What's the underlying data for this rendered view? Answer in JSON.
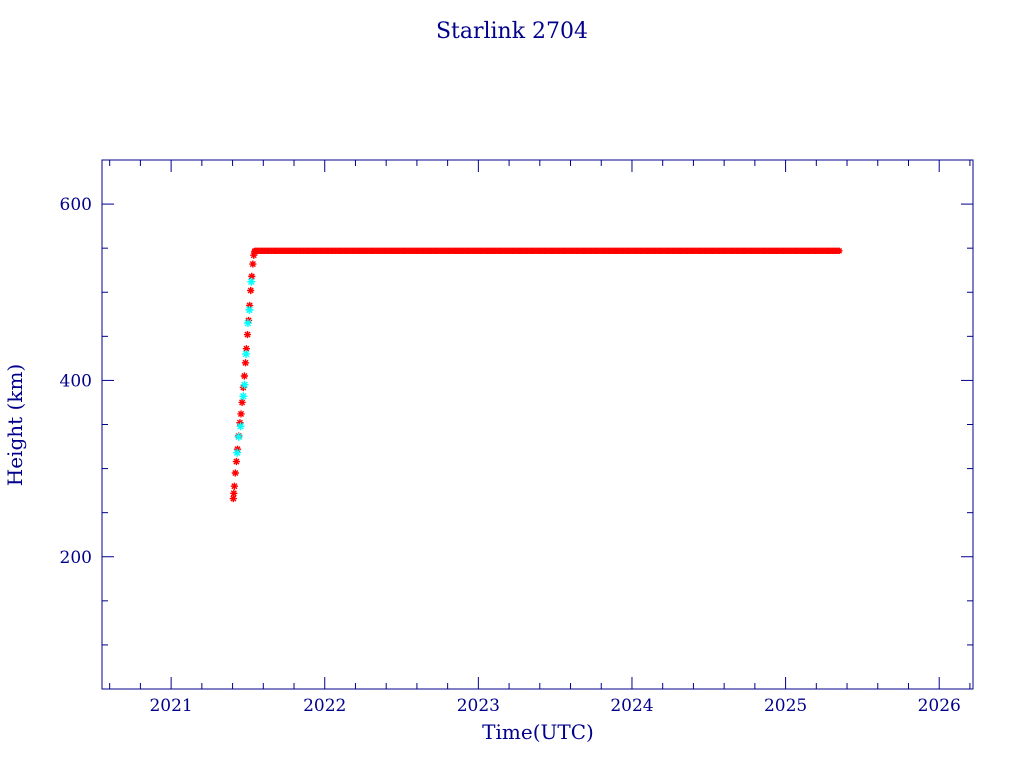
{
  "chart_data": {
    "type": "scatter",
    "title": "Starlink 2704",
    "xlabel": "Time(UTC)",
    "ylabel": "Height (km)",
    "xlim": [
      2020.55,
      2026.22
    ],
    "ylim": [
      50,
      650
    ],
    "x_ticks": [
      2021,
      2022,
      2023,
      2024,
      2025,
      2026
    ],
    "y_ticks": [
      200,
      400,
      600
    ],
    "grid": false,
    "colors": {
      "axis": "#00008b",
      "apogee": "#ff0000",
      "perigee": "#00ffff",
      "marker_edge": "#8b0000"
    },
    "series": [
      {
        "color": "#ff0000",
        "marker": "asterisk",
        "raising": [
          [
            2021.405,
            266
          ],
          [
            2021.408,
            272
          ],
          [
            2021.412,
            280
          ],
          [
            2021.418,
            295
          ],
          [
            2021.425,
            308
          ],
          [
            2021.432,
            322
          ],
          [
            2021.44,
            337
          ],
          [
            2021.448,
            352
          ],
          [
            2021.455,
            362
          ],
          [
            2021.462,
            375
          ],
          [
            2021.47,
            392
          ],
          [
            2021.477,
            405
          ],
          [
            2021.484,
            420
          ],
          [
            2021.49,
            436
          ],
          [
            2021.497,
            452
          ],
          [
            2021.504,
            468
          ],
          [
            2021.511,
            485
          ],
          [
            2021.518,
            502
          ],
          [
            2021.525,
            518
          ],
          [
            2021.532,
            532
          ],
          [
            2021.538,
            542
          ],
          [
            2021.545,
            546
          ]
        ],
        "plateau": {
          "start": 2021.545,
          "end": 2025.35,
          "value": 547
        }
      },
      {
        "color": "#00ffff",
        "marker": "asterisk",
        "raising": [
          [
            2021.43,
            318
          ],
          [
            2021.44,
            336
          ],
          [
            2021.452,
            348
          ],
          [
            2021.47,
            382
          ],
          [
            2021.478,
            395
          ],
          [
            2021.488,
            430
          ],
          [
            2021.5,
            465
          ],
          [
            2021.51,
            480
          ],
          [
            2021.522,
            512
          ]
        ]
      }
    ]
  }
}
